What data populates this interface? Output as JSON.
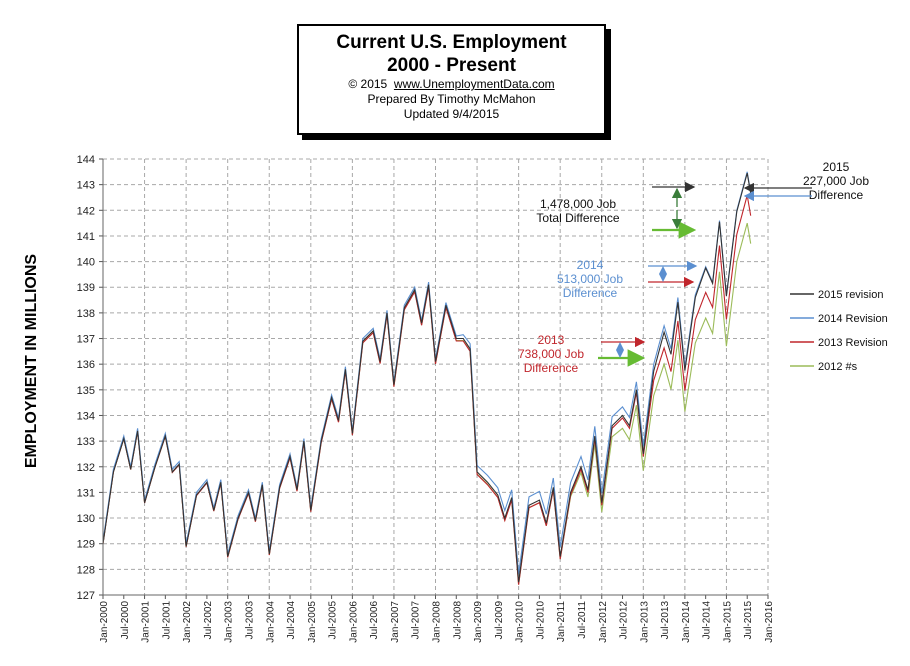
{
  "title_box": {
    "line1": "Current U.S. Employment",
    "line2": "2000 - Present",
    "copyright": "© 2015",
    "url": "www.UnemploymentData.com",
    "author": "Prepared  By Timothy McMahon",
    "updated": "Updated  9/4/2015"
  },
  "annotations": {
    "a2015": [
      "2015",
      "227,000  Job",
      "Difference"
    ],
    "total": [
      "1,478,000  Job",
      "Total Difference"
    ],
    "a2014": [
      "2014",
      "513,000  Job",
      "Difference"
    ],
    "a2013": [
      "2013",
      "738,000  Job",
      "Difference"
    ]
  },
  "colors": {
    "s2015": "#333333",
    "s2014": "#5b8fd0",
    "s2013": "#c0262c",
    "s2012": "#9bbb59",
    "arrow_green": "#66bb33",
    "grid": "#a8a8a8",
    "text_blue": "#5b8fd0",
    "text_red": "#c0262c"
  },
  "chart_data": {
    "type": "line",
    "title": "Current U.S. Employment 2000 - Present",
    "xlabel": "",
    "ylabel": "EMPLOYMENT IN MILLIONS",
    "ylim": [
      127,
      144
    ],
    "yticks": [
      127,
      128,
      129,
      130,
      131,
      132,
      133,
      134,
      135,
      136,
      137,
      138,
      139,
      140,
      141,
      142,
      143,
      144
    ],
    "xlim": [
      "Jan-2000",
      "Jan-2016"
    ],
    "xticks": [
      "Jan-2000",
      "Jul-2000",
      "Jan-2001",
      "Jul-2001",
      "Jan-2002",
      "Jul-2002",
      "Jan-2003",
      "Jul-2003",
      "Jan-2004",
      "Jul-2004",
      "Jan-2005",
      "Jul-2005",
      "Jan-2006",
      "Jul-2006",
      "Jan-2007",
      "Jul-2007",
      "Jan-2008",
      "Jul-2008",
      "Jan-2009",
      "Jul-2009",
      "Jan-2010",
      "Jul-2010",
      "Jan-2011",
      "Jul-2011",
      "Jan-2012",
      "Jul-2012",
      "Jan-2013",
      "Jul-2013",
      "Jan-2014",
      "Jul-2014",
      "Jan-2015",
      "Jul-2015",
      "Jan-2016"
    ],
    "grid": true,
    "legend_position": "right",
    "base_series": {
      "name": "2015 revision",
      "x": [
        "Jan-2000",
        "Apr-2000",
        "Jul-2000",
        "Sep-2000",
        "Nov-2000",
        "Jan-2001",
        "Apr-2001",
        "Jul-2001",
        "Sep-2001",
        "Nov-2001",
        "Jan-2002",
        "Apr-2002",
        "Jul-2002",
        "Sep-2002",
        "Nov-2002",
        "Jan-2003",
        "Apr-2003",
        "Jul-2003",
        "Sep-2003",
        "Nov-2003",
        "Jan-2004",
        "Apr-2004",
        "Jul-2004",
        "Sep-2004",
        "Nov-2004",
        "Jan-2005",
        "Apr-2005",
        "Jul-2005",
        "Sep-2005",
        "Nov-2005",
        "Jan-2006",
        "Apr-2006",
        "Jul-2006",
        "Sep-2006",
        "Nov-2006",
        "Jan-2007",
        "Apr-2007",
        "Jul-2007",
        "Sep-2007",
        "Nov-2007",
        "Jan-2008",
        "Apr-2008",
        "Jul-2008",
        "Sep-2008",
        "Nov-2008",
        "Jan-2009",
        "Apr-2009",
        "Jul-2009",
        "Sep-2009",
        "Nov-2009",
        "Jan-2010",
        "Apr-2010",
        "Jul-2010",
        "Sep-2010",
        "Nov-2010",
        "Jan-2011",
        "Apr-2011",
        "Jul-2011",
        "Sep-2011",
        "Nov-2011",
        "Jan-2012",
        "Apr-2012",
        "Jul-2012",
        "Sep-2012",
        "Nov-2012",
        "Jan-2013",
        "Apr-2013",
        "Jul-2013",
        "Sep-2013",
        "Nov-2013",
        "Jan-2014",
        "Apr-2014",
        "Jul-2014",
        "Sep-2014",
        "Nov-2014",
        "Jan-2015",
        "Apr-2015",
        "Jul-2015",
        "Aug-2015"
      ],
      "values": [
        129.0,
        131.8,
        133.1,
        131.9,
        133.4,
        130.6,
        132.0,
        133.2,
        131.8,
        132.1,
        128.9,
        130.9,
        131.4,
        130.3,
        131.4,
        128.5,
        130.0,
        131.0,
        129.9,
        131.3,
        128.6,
        131.2,
        132.4,
        131.1,
        133.0,
        130.3,
        133.0,
        134.7,
        133.8,
        135.8,
        133.3,
        136.9,
        137.3,
        136.1,
        138.0,
        135.2,
        138.2,
        138.9,
        137.6,
        139.1,
        136.1,
        138.3,
        137.0,
        137.0,
        136.6,
        131.8,
        131.4,
        130.9,
        130.0,
        130.8,
        127.5,
        130.5,
        130.7,
        129.8,
        131.2,
        128.5,
        131.0,
        132.0,
        131.1,
        133.2,
        130.6,
        133.6,
        134.0,
        133.6,
        135.0,
        132.5,
        135.5,
        136.8,
        135.9,
        137.9,
        135.2,
        138.0,
        139.1,
        138.5,
        140.9,
        138.0,
        141.3,
        142.8,
        142.0
      ]
    },
    "series": [
      {
        "name": "2015 revision",
        "offsets": [
          [
            2013.0,
            0
          ],
          [
            2013.5,
            0.45
          ],
          [
            2014.5,
            0.65
          ],
          [
            2015.7,
            0.65
          ]
        ]
      },
      {
        "name": "2014 Revision",
        "offsets": [
          [
            2000.0,
            0.1
          ],
          [
            2008.5,
            0.1
          ],
          [
            2009.0,
            0.25
          ],
          [
            2011.5,
            0.4
          ],
          [
            2013.0,
            0.3
          ],
          [
            2013.5,
            0.7
          ],
          [
            2014.5,
            0.7
          ],
          [
            2015.7,
            0.7
          ]
        ]
      },
      {
        "name": "2013 Revision",
        "offsets": [
          [
            2000.0,
            0
          ],
          [
            2009.0,
            -0.1
          ],
          [
            2013.0,
            -0.1
          ],
          [
            2014.5,
            -0.3
          ],
          [
            2015.7,
            -0.2
          ]
        ]
      },
      {
        "name": "2012 #s",
        "offsets": [
          [
            2000.0,
            0
          ],
          [
            2011.0,
            -0.1
          ],
          [
            2012.5,
            -0.5
          ],
          [
            2013.5,
            -0.8
          ],
          [
            2014.5,
            -1.3
          ],
          [
            2015.7,
            -1.3
          ]
        ]
      }
    ]
  }
}
